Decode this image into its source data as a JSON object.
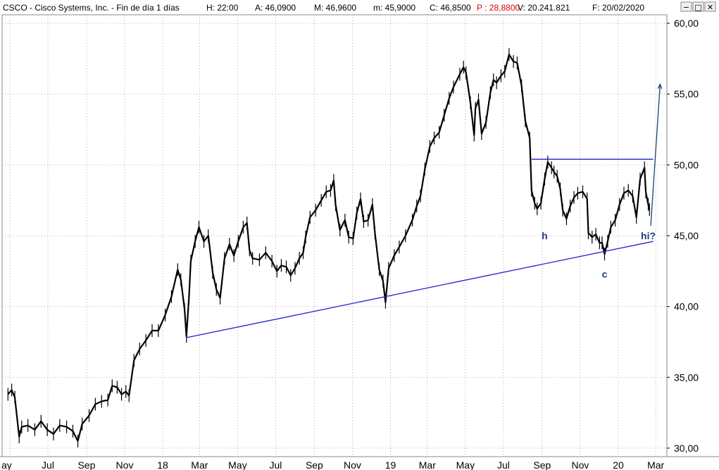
{
  "header": {
    "ticker": "CSCO",
    "title": "CSCO - Cisco Systems, Inc. - Fin de día 1 días",
    "h_label": "H: 22:00",
    "a_label": "A: 46,0900",
    "m_label": "M: 46,9600",
    "min_label": "m: 45,9000",
    "c_label": "C: 46,8500",
    "p_label": "P : 28,8800",
    "v_label": "V: 20.241.821",
    "f_label": "F: 20/02/2020",
    "buttons": [
      "−",
      "□",
      "✕"
    ]
  },
  "colors": {
    "price": "#000000",
    "trend_line": "#2222cc",
    "arrow": "#1f3f7a",
    "p_label": "#e00000",
    "grid": "#b0b0b0"
  },
  "chart_data": {
    "type": "line",
    "title": "CSCO - Cisco Systems, Inc. - Fin de día 1 días",
    "xlabel": "",
    "ylabel": "",
    "ylim": [
      29.4,
      60.6
    ],
    "y_ticks": [
      "30,00",
      "35,00",
      "40,00",
      "45,00",
      "50,00",
      "55,00",
      "60,00"
    ],
    "y_tick_values": [
      30,
      35,
      40,
      45,
      50,
      55,
      60
    ],
    "x_ticks": [
      "ay",
      "Jul",
      "Sep",
      "Nov",
      "18",
      "Mar",
      "May",
      "Jul",
      "Sep",
      "Nov",
      "19",
      "Mar",
      "May",
      "Jul",
      "Sep",
      "Nov",
      "20",
      "Mar"
    ],
    "x_tick_dates": [
      "2017-05-01",
      "2017-07-01",
      "2017-09-01",
      "2017-11-01",
      "2018-01-01",
      "2018-03-01",
      "2018-05-01",
      "2018-07-01",
      "2018-09-01",
      "2018-11-01",
      "2019-01-01",
      "2019-03-01",
      "2019-05-01",
      "2019-07-01",
      "2019-09-01",
      "2019-11-01",
      "2020-01-01",
      "2020-03-01"
    ],
    "grid": true,
    "series": [
      {
        "values": [
          [
            "2017-04-28",
            33.8
          ],
          [
            "2017-05-04",
            34.1
          ],
          [
            "2017-05-09",
            33.6
          ],
          [
            "2017-05-16",
            30.8
          ],
          [
            "2017-05-20",
            31.5
          ],
          [
            "2017-05-30",
            31.6
          ],
          [
            "2017-06-10",
            31.3
          ],
          [
            "2017-06-20",
            31.9
          ],
          [
            "2017-06-30",
            31.3
          ],
          [
            "2017-07-10",
            31.0
          ],
          [
            "2017-07-20",
            31.6
          ],
          [
            "2017-07-31",
            31.5
          ],
          [
            "2017-08-10",
            31.2
          ],
          [
            "2017-08-18",
            30.5
          ],
          [
            "2017-08-25",
            31.7
          ],
          [
            "2017-09-05",
            32.3
          ],
          [
            "2017-09-15",
            33.1
          ],
          [
            "2017-09-25",
            33.3
          ],
          [
            "2017-10-05",
            33.4
          ],
          [
            "2017-10-12",
            34.4
          ],
          [
            "2017-10-20",
            34.3
          ],
          [
            "2017-10-27",
            33.8
          ],
          [
            "2017-11-03",
            34.0
          ],
          [
            "2017-11-08",
            33.7
          ],
          [
            "2017-11-16",
            36.2
          ],
          [
            "2017-11-25",
            37.0
          ],
          [
            "2017-12-05",
            37.6
          ],
          [
            "2017-12-15",
            38.3
          ],
          [
            "2017-12-25",
            38.3
          ],
          [
            "2018-01-05",
            39.4
          ],
          [
            "2018-01-15",
            40.7
          ],
          [
            "2018-01-25",
            42.6
          ],
          [
            "2018-01-30",
            41.9
          ],
          [
            "2018-02-05",
            39.8
          ],
          [
            "2018-02-08",
            37.9
          ],
          [
            "2018-02-12",
            40.6
          ],
          [
            "2018-02-15",
            43.2
          ],
          [
            "2018-02-22",
            44.6
          ],
          [
            "2018-02-28",
            45.6
          ],
          [
            "2018-03-08",
            44.6
          ],
          [
            "2018-03-15",
            45.0
          ],
          [
            "2018-03-22",
            42.4
          ],
          [
            "2018-03-28",
            41.2
          ],
          [
            "2018-04-03",
            40.6
          ],
          [
            "2018-04-10",
            43.4
          ],
          [
            "2018-04-18",
            44.4
          ],
          [
            "2018-04-25",
            43.6
          ],
          [
            "2018-05-02",
            44.6
          ],
          [
            "2018-05-10",
            45.6
          ],
          [
            "2018-05-16",
            45.9
          ],
          [
            "2018-05-20",
            44.0
          ],
          [
            "2018-05-25",
            43.4
          ],
          [
            "2018-06-05",
            43.3
          ],
          [
            "2018-06-15",
            43.8
          ],
          [
            "2018-06-25",
            43.2
          ],
          [
            "2018-07-03",
            42.5
          ],
          [
            "2018-07-10",
            42.9
          ],
          [
            "2018-07-18",
            42.8
          ],
          [
            "2018-07-25",
            42.2
          ],
          [
            "2018-08-01",
            42.7
          ],
          [
            "2018-08-08",
            43.4
          ],
          [
            "2018-08-14",
            43.8
          ],
          [
            "2018-08-18",
            44.9
          ],
          [
            "2018-08-25",
            46.3
          ],
          [
            "2018-09-03",
            46.8
          ],
          [
            "2018-09-12",
            47.5
          ],
          [
            "2018-09-20",
            48.1
          ],
          [
            "2018-09-27",
            48.2
          ],
          [
            "2018-10-02",
            48.9
          ],
          [
            "2018-10-05",
            47.2
          ],
          [
            "2018-10-12",
            45.4
          ],
          [
            "2018-10-20",
            46.1
          ],
          [
            "2018-10-26",
            44.9
          ],
          [
            "2018-11-02",
            44.8
          ],
          [
            "2018-11-08",
            46.6
          ],
          [
            "2018-11-14",
            47.6
          ],
          [
            "2018-11-19",
            46.0
          ],
          [
            "2018-11-26",
            46.1
          ],
          [
            "2018-12-03",
            47.2
          ],
          [
            "2018-12-07",
            45.2
          ],
          [
            "2018-12-14",
            42.6
          ],
          [
            "2018-12-20",
            41.8
          ],
          [
            "2018-12-24",
            40.3
          ],
          [
            "2018-12-29",
            42.7
          ],
          [
            "2019-01-07",
            43.6
          ],
          [
            "2019-01-15",
            44.2
          ],
          [
            "2019-01-25",
            45.0
          ],
          [
            "2019-02-05",
            46.1
          ],
          [
            "2019-02-12",
            47.1
          ],
          [
            "2019-02-18",
            47.8
          ],
          [
            "2019-02-25",
            49.7
          ],
          [
            "2019-03-05",
            51.3
          ],
          [
            "2019-03-12",
            51.9
          ],
          [
            "2019-03-20",
            52.3
          ],
          [
            "2019-03-28",
            53.5
          ],
          [
            "2019-04-05",
            54.7
          ],
          [
            "2019-04-12",
            55.5
          ],
          [
            "2019-04-22",
            56.4
          ],
          [
            "2019-04-28",
            56.9
          ],
          [
            "2019-05-02",
            56.5
          ],
          [
            "2019-05-09",
            54.4
          ],
          [
            "2019-05-15",
            52.1
          ],
          [
            "2019-05-17",
            54.0
          ],
          [
            "2019-05-22",
            54.6
          ],
          [
            "2019-05-27",
            52.2
          ],
          [
            "2019-06-03",
            53.0
          ],
          [
            "2019-06-10",
            55.1
          ],
          [
            "2019-06-15",
            56.0
          ],
          [
            "2019-06-20",
            55.8
          ],
          [
            "2019-06-27",
            56.3
          ],
          [
            "2019-07-03",
            56.6
          ],
          [
            "2019-07-10",
            57.8
          ],
          [
            "2019-07-17",
            57.3
          ],
          [
            "2019-07-23",
            57.2
          ],
          [
            "2019-07-30",
            55.6
          ],
          [
            "2019-08-05",
            53.1
          ],
          [
            "2019-08-12",
            51.9
          ],
          [
            "2019-08-15",
            48.2
          ],
          [
            "2019-08-20",
            47.3
          ],
          [
            "2019-08-24",
            46.9
          ],
          [
            "2019-08-30",
            47.3
          ],
          [
            "2019-09-05",
            49.0
          ],
          [
            "2019-09-10",
            50.2
          ],
          [
            "2019-09-16",
            49.8
          ],
          [
            "2019-09-20",
            49.5
          ],
          [
            "2019-09-25",
            49.2
          ],
          [
            "2019-09-30",
            48.3
          ],
          [
            "2019-10-04",
            46.8
          ],
          [
            "2019-10-10",
            46.2
          ],
          [
            "2019-10-16",
            47.1
          ],
          [
            "2019-10-22",
            47.7
          ],
          [
            "2019-10-28",
            48.0
          ],
          [
            "2019-11-05",
            48.1
          ],
          [
            "2019-11-12",
            47.6
          ],
          [
            "2019-11-14",
            45.2
          ],
          [
            "2019-11-20",
            44.9
          ],
          [
            "2019-11-26",
            45.1
          ],
          [
            "2019-12-02",
            44.5
          ],
          [
            "2019-12-06",
            44.5
          ],
          [
            "2019-12-10",
            43.7
          ],
          [
            "2019-12-15",
            44.6
          ],
          [
            "2019-12-20",
            45.6
          ],
          [
            "2019-12-27",
            46.1
          ],
          [
            "2020-01-03",
            47.2
          ],
          [
            "2020-01-10",
            48.0
          ],
          [
            "2020-01-17",
            48.2
          ],
          [
            "2020-01-24",
            47.8
          ],
          [
            "2020-01-30",
            46.3
          ],
          [
            "2020-02-05",
            49.0
          ],
          [
            "2020-02-12",
            49.8
          ],
          [
            "2020-02-14",
            48.1
          ],
          [
            "2020-02-18",
            47.2
          ],
          [
            "2020-02-20",
            46.85
          ]
        ]
      }
    ],
    "trend_lines": [
      {
        "from": [
          "2018-02-08",
          37.8
        ],
        "to": [
          "2020-02-26",
          44.6
        ]
      },
      {
        "from": [
          "2019-08-15",
          50.4
        ],
        "to": [
          "2020-02-26",
          50.4
        ]
      }
    ],
    "projection_arrow": {
      "from": [
        "2020-02-22",
        45.7
      ],
      "to": [
        "2020-03-08",
        55.7
      ]
    },
    "annotations": [
      {
        "text": "h",
        "date": "2019-09-05",
        "value": 45.0
      },
      {
        "text": "c",
        "date": "2019-12-10",
        "value": 42.3
      },
      {
        "text": "hi?",
        "date": "2020-02-18",
        "value": 45.0
      }
    ]
  }
}
